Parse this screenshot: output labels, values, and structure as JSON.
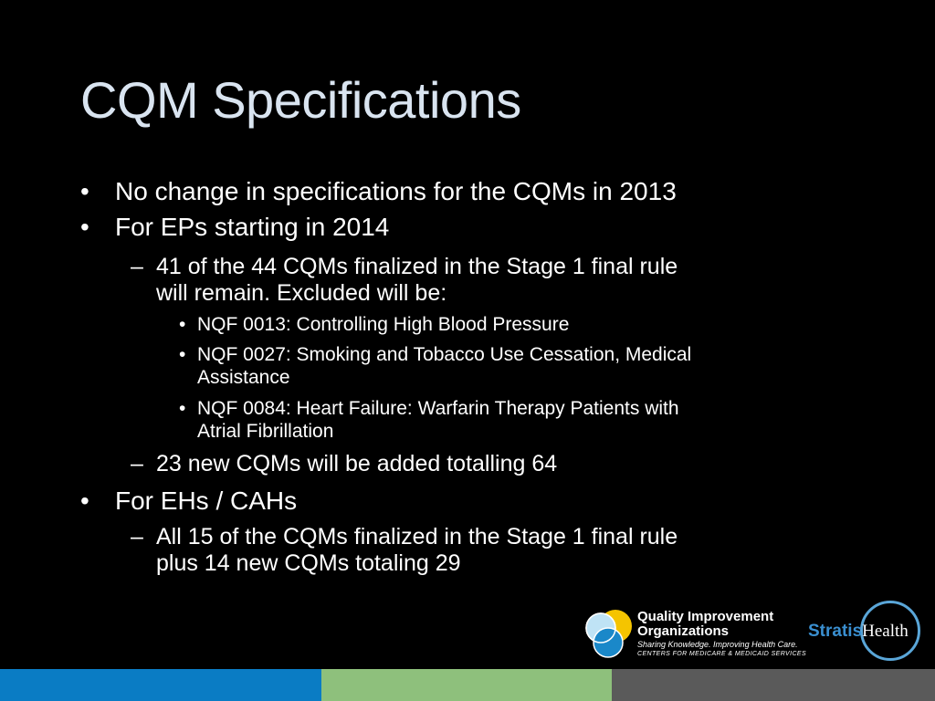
{
  "slide": {
    "title": "CQM Specifications",
    "bullet_l1": "•",
    "bullet_l2": "–",
    "bullet_l3": "•",
    "items": [
      {
        "level": 1,
        "lines": [
          "No change in specifications for the CQMs in 2013"
        ]
      },
      {
        "level": 1,
        "lines": [
          "For EPs starting in 2014"
        ]
      },
      {
        "level": 2,
        "lines": [
          "41 of the 44 CQMs finalized in the Stage 1 final rule",
          "will remain.  Excluded will be:"
        ]
      },
      {
        "level": 3,
        "lines": [
          "NQF 0013: Controlling High Blood Pressure"
        ]
      },
      {
        "level": 3,
        "lines": [
          "NQF 0027: Smoking and Tobacco Use Cessation, Medical",
          "Assistance"
        ]
      },
      {
        "level": 3,
        "lines": [
          "NQF 0084: Heart Failure: Warfarin Therapy Patients with",
          "Atrial Fibrillation"
        ]
      },
      {
        "level": 2,
        "lines": [
          "23 new CQMs will be added totalling 64"
        ]
      },
      {
        "level": 1,
        "lines": [
          "For EHs / CAHs"
        ]
      },
      {
        "level": 2,
        "lines": [
          "All 15 of the CQMs finalized in the Stage 1 final rule",
          "plus 14 new CQMs totaling 29"
        ]
      }
    ]
  },
  "logos": {
    "qio": {
      "line1": "Quality Improvement",
      "line2": "Organizations",
      "tagline": "Sharing Knowledge. Improving Health Care.",
      "agency": "CENTERS FOR MEDICARE & MEDICAID SERVICES"
    },
    "stratis": {
      "part1": "Stratis",
      "part2": "Health"
    }
  },
  "colors": {
    "background": "#000000",
    "title": "#d9e4f0",
    "text": "#ffffff",
    "bar_blue": "#0a7cc4",
    "bar_green": "#8ec07c",
    "bar_gray": "#5a5a5a",
    "qio_yellow": "#f5c400",
    "qio_blue": "#1a88c9",
    "qio_light": "#bfe3f5",
    "stratis_blue": "#3a8fd0"
  }
}
